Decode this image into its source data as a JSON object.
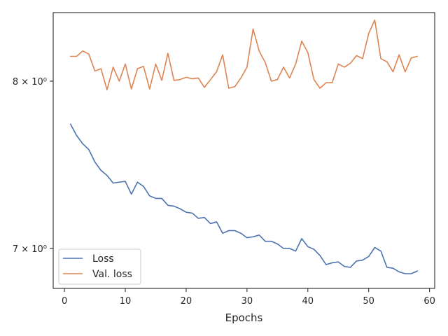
{
  "chart_data": {
    "type": "line",
    "title": "",
    "xlabel": "Epochs",
    "ylabel": "",
    "y_scale": "log",
    "xlim": [
      -1.85,
      60.85
    ],
    "ylim": [
      6.78,
      8.45
    ],
    "grid": false,
    "legend_position": "lower-left",
    "x_ticks": [
      0,
      10,
      20,
      30,
      40,
      50,
      60
    ],
    "x_tick_labels": [
      "0",
      "10",
      "20",
      "30",
      "40",
      "50",
      "60"
    ],
    "y_ticks": [
      7,
      8
    ],
    "y_tick_labels": [
      "7 × 10⁰",
      "8 × 10⁰"
    ],
    "x": [
      1,
      2,
      3,
      4,
      5,
      6,
      7,
      8,
      9,
      10,
      11,
      12,
      13,
      14,
      15,
      16,
      17,
      18,
      19,
      20,
      21,
      22,
      23,
      24,
      25,
      26,
      27,
      28,
      29,
      30,
      31,
      32,
      33,
      34,
      35,
      36,
      37,
      38,
      39,
      40,
      41,
      42,
      43,
      44,
      45,
      46,
      47,
      48,
      49,
      50,
      51,
      52,
      53,
      54,
      55,
      56,
      57,
      58
    ],
    "series": [
      {
        "name": "Loss",
        "color": "#4c72b0",
        "values": [
          7.73,
          7.66,
          7.61,
          7.575,
          7.5,
          7.45,
          7.42,
          7.375,
          7.38,
          7.385,
          7.31,
          7.38,
          7.355,
          7.3,
          7.285,
          7.285,
          7.245,
          7.24,
          7.225,
          7.205,
          7.2,
          7.17,
          7.175,
          7.14,
          7.15,
          7.085,
          7.1,
          7.1,
          7.085,
          7.06,
          7.065,
          7.075,
          7.04,
          7.04,
          7.025,
          7.0,
          7.0,
          6.985,
          7.055,
          7.01,
          6.995,
          6.96,
          6.91,
          6.92,
          6.925,
          6.9,
          6.895,
          6.93,
          6.935,
          6.955,
          7.005,
          6.985,
          6.895,
          6.89,
          6.87,
          6.86,
          6.86,
          6.875
        ]
      },
      {
        "name": "Val. loss",
        "color": "#dd8452",
        "values": [
          8.16,
          8.16,
          8.195,
          8.175,
          8.065,
          8.08,
          7.945,
          8.09,
          8.0,
          8.11,
          7.95,
          8.08,
          8.095,
          7.95,
          8.11,
          8.005,
          8.18,
          8.005,
          8.01,
          8.025,
          8.015,
          8.02,
          7.96,
          8.01,
          8.06,
          8.17,
          7.955,
          7.965,
          8.02,
          8.09,
          8.34,
          8.195,
          8.12,
          8.0,
          8.01,
          8.09,
          8.02,
          8.11,
          8.26,
          8.185,
          8.01,
          7.955,
          7.99,
          7.99,
          8.11,
          8.09,
          8.115,
          8.165,
          8.145,
          8.31,
          8.4,
          8.145,
          8.125,
          8.06,
          8.17,
          8.06,
          8.15,
          8.16
        ]
      }
    ]
  }
}
